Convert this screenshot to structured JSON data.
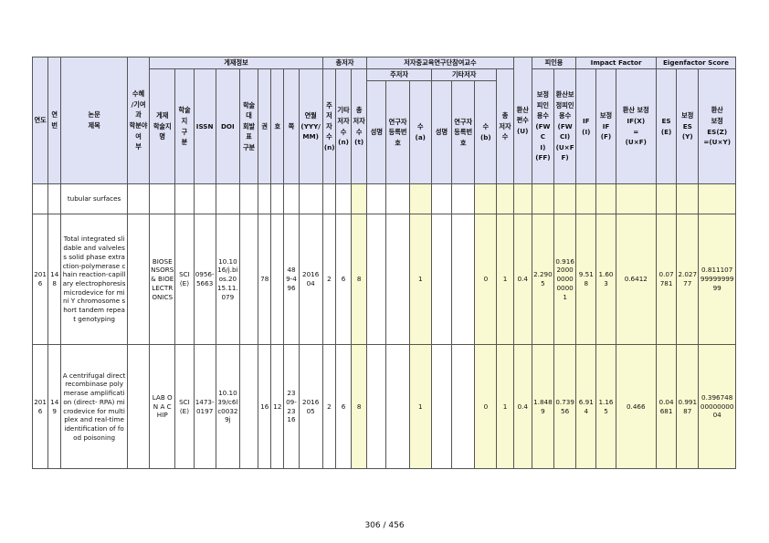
{
  "headers": {
    "year": "연도",
    "no": "연번",
    "title": "논문\n제목",
    "corresponding": "수혜\n/기여과\n학분야여\n부",
    "publication_group": "게재정보",
    "journal": "게재\n학술지\n명",
    "journal_type": "학술\n지\n구\n분",
    "issn": "ISSN",
    "doi": "DOI",
    "journal_dept": "학술대\n회발표\n구분",
    "volume": "권",
    "issue": "호",
    "page": "쪽",
    "date": "연월\n(YYY/\nMM)",
    "authors_group": "총저자",
    "main_authors": "주\n저자\n수\n(n)",
    "other_authors": "기타\n저자\n수\n(n)",
    "total_authors": "총\n저자\n수\n(t)",
    "participants_group": "저자중교육연구단참여교수",
    "main_author_sub": "주저자",
    "other_author_sub": "기타저자",
    "name": "성명",
    "researcher_no": "연구자\n등록번\n호",
    "count_a": "수\n(a)",
    "name2": "성명",
    "researcher_no2": "연구자\n등록번\n호",
    "count_b": "수\n(b)",
    "total_participants": "총\n저자\n수",
    "converted_score": "환산\n편수\n(U)",
    "citation_group": "피인용",
    "fwci": "보정\n피인\n용수\n(FWC\nI)\n(FF)",
    "fwci_conv": "환산보\n정피인\n용수\n(FWCI)\n(U×FF)",
    "if_group": "Impact Factor",
    "if": "IF\n(I)",
    "if_adj": "보정\nIF\n(F)",
    "if_conv": "환산 보정\nIF(X)\n=\n(U×F)",
    "es_group": "Eigenfactor Score",
    "es": "ES\n(E)",
    "es_adj": "보정\nES\n(Y)",
    "es_conv": "환산\n보정\nES(Z)\n=(U×Y)"
  },
  "continuation": {
    "title": "tubular surfaces"
  },
  "rows": [
    {
      "year": "2016",
      "no": "148",
      "title": "Total integrated slidable and valveless solid phase extraction-polymerase chain reaction-capillary electrophoresis microdevice for mini Y chromosome short tandem repeat genotyping",
      "journal": "BIOSENSORS & BIOELECTRONICS",
      "journal_type": "SCI(E)",
      "issn": "0956-5663",
      "doi": "10.1016/j.bios.2015.11.079",
      "volume": "78",
      "issue": "",
      "page": "489-496",
      "date": "2016 04",
      "main_authors": "2",
      "other_authors": "6",
      "total_authors": "8",
      "count_a": "1",
      "count_b": "0",
      "total_participants": "1",
      "converted": "0.4",
      "fwci": "2.2905",
      "fwci_conv": "0.9162000000000001",
      "if": "9.518",
      "if_adj": "1.603",
      "if_conv": "0.6412",
      "es": "0.07781",
      "es_adj": "2.02777",
      "es_conv": "0.8111079999999999"
    },
    {
      "year": "2016",
      "no": "149",
      "title": "A centrifugal direct recombinase polymerase amplification (direct- RPA) microdevice for multiplex and real-time identification of food poisoning",
      "journal": "LAB ON A CHIP",
      "journal_type": "SCI(E)",
      "issn": "1473-0197",
      "doi": "10.1039/c6lc00329j",
      "volume": "16",
      "issue": "12",
      "page": "2309-2316",
      "date": "2016 05",
      "main_authors": "2",
      "other_authors": "6",
      "total_authors": "8",
      "count_a": "1",
      "count_b": "0",
      "total_participants": "1",
      "converted": "0.4",
      "fwci": "1.8489",
      "fwci_conv": "0.73956",
      "if": "6.914",
      "if_adj": "1.165",
      "if_conv": "0.466",
      "es": "0.04681",
      "es_adj": "0.99187",
      "es_conv": "0.3967480000000004"
    }
  ],
  "footer": {
    "page_number": "306 / 456"
  }
}
